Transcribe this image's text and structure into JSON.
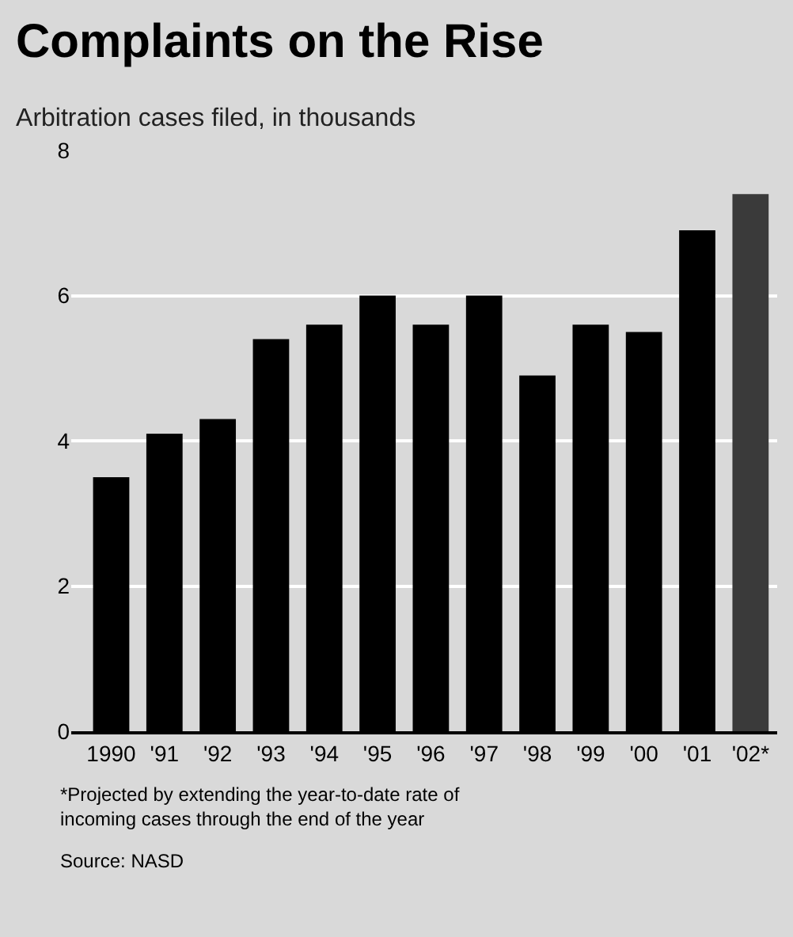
{
  "chart_data": {
    "type": "bar",
    "title": "Complaints on the Rise",
    "subtitle": "Arbitration cases filed, in thousands",
    "categories": [
      "1990",
      "'91",
      "'92",
      "'93",
      "'94",
      "'95",
      "'96",
      "'97",
      "'98",
      "'99",
      "'00",
      "'01",
      "'02*"
    ],
    "values": [
      3.5,
      4.1,
      4.3,
      5.4,
      5.6,
      6.0,
      5.6,
      6.0,
      4.9,
      5.6,
      5.5,
      6.9,
      7.4
    ],
    "colors": [
      "#000000",
      "#000000",
      "#000000",
      "#000000",
      "#000000",
      "#000000",
      "#000000",
      "#000000",
      "#000000",
      "#000000",
      "#000000",
      "#000000",
      "#3a3a3a"
    ],
    "ylim": [
      0,
      8
    ],
    "yticks": [
      0,
      2,
      4,
      6,
      8
    ],
    "grid": "y",
    "annotations": [
      "*Projected by extending the year-to-date rate of incoming cases through the end of the year",
      "Source: NASD"
    ]
  }
}
